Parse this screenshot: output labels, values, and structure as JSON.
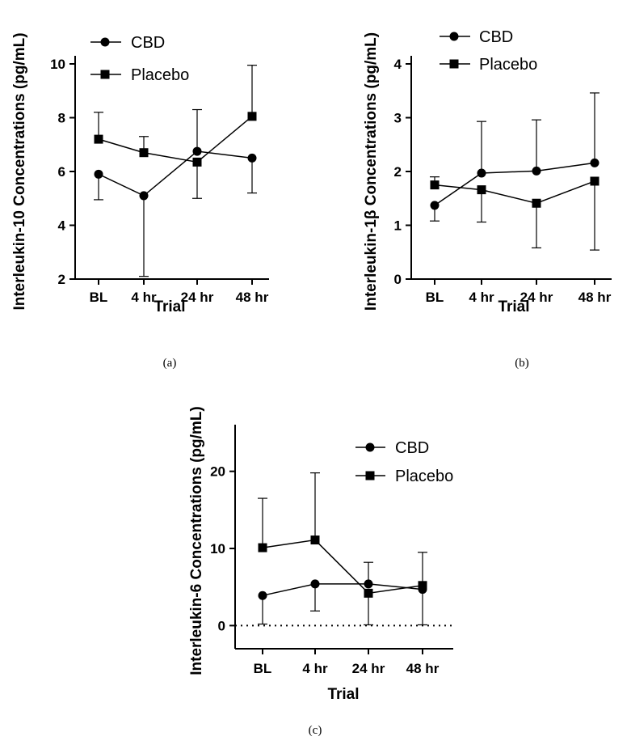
{
  "chart_data": [
    {
      "type": "line",
      "caption": "(a)",
      "xlabel": "Trial",
      "ylabel": "Interleukin-10 Concentrations (pg/mL)",
      "categories": [
        "BL",
        "4 hr",
        "24 hr",
        "48 hr"
      ],
      "ylim": [
        2,
        10
      ],
      "yticks": [
        2,
        4,
        6,
        8,
        10
      ],
      "legend_position": "top-left",
      "series": [
        {
          "name": "CBD",
          "marker": "circle",
          "values": [
            5.9,
            5.1,
            6.75,
            6.5
          ],
          "err_high": [
            null,
            null,
            8.3,
            null
          ],
          "err_low": [
            4.95,
            2.1,
            null,
            5.2
          ]
        },
        {
          "name": "Placebo",
          "marker": "square",
          "values": [
            7.2,
            6.7,
            6.35,
            8.05
          ],
          "err_high": [
            8.2,
            7.3,
            null,
            9.95
          ],
          "err_low": [
            null,
            null,
            5.0,
            null
          ]
        }
      ]
    },
    {
      "type": "line",
      "caption": "(b)",
      "xlabel": "Trial",
      "ylabel": "Interleukin-1β Concentrations (pg/mL)",
      "categories": [
        "BL",
        "4 hr",
        "24 hr",
        "48 hr"
      ],
      "ylim": [
        0,
        4
      ],
      "yticks": [
        0,
        1,
        2,
        3,
        4
      ],
      "legend_position": "top-left",
      "series": [
        {
          "name": "CBD",
          "marker": "circle",
          "values": [
            1.37,
            1.97,
            2.01,
            2.16
          ],
          "err_high": [
            null,
            2.93,
            2.96,
            3.46
          ],
          "err_low": [
            1.08,
            null,
            null,
            null
          ]
        },
        {
          "name": "Placebo",
          "marker": "square",
          "values": [
            1.75,
            1.66,
            1.41,
            1.82
          ],
          "err_high": [
            1.9,
            null,
            null,
            null
          ],
          "err_low": [
            null,
            1.06,
            0.58,
            0.54
          ]
        }
      ]
    },
    {
      "type": "line",
      "caption": "(c)",
      "xlabel": "Trial",
      "ylabel": "Interleukin-6 Concentrations (pg/mL)",
      "categories": [
        "BL",
        "4 hr",
        "24 hr",
        "48 hr"
      ],
      "ylim": [
        -3,
        25
      ],
      "yticks": [
        0,
        10,
        20
      ],
      "zero_line": true,
      "legend_position": "top-right",
      "series": [
        {
          "name": "CBD",
          "marker": "circle",
          "values": [
            3.9,
            5.4,
            5.4,
            4.7
          ],
          "err_high": [
            null,
            null,
            8.2,
            9.5
          ],
          "err_low": [
            0.2,
            1.9,
            null,
            null
          ]
        },
        {
          "name": "Placebo",
          "marker": "square",
          "values": [
            10.1,
            11.1,
            4.2,
            5.2
          ],
          "err_high": [
            16.5,
            19.8,
            null,
            null
          ],
          "err_low": [
            null,
            null,
            0.1,
            0.1
          ]
        }
      ]
    }
  ]
}
